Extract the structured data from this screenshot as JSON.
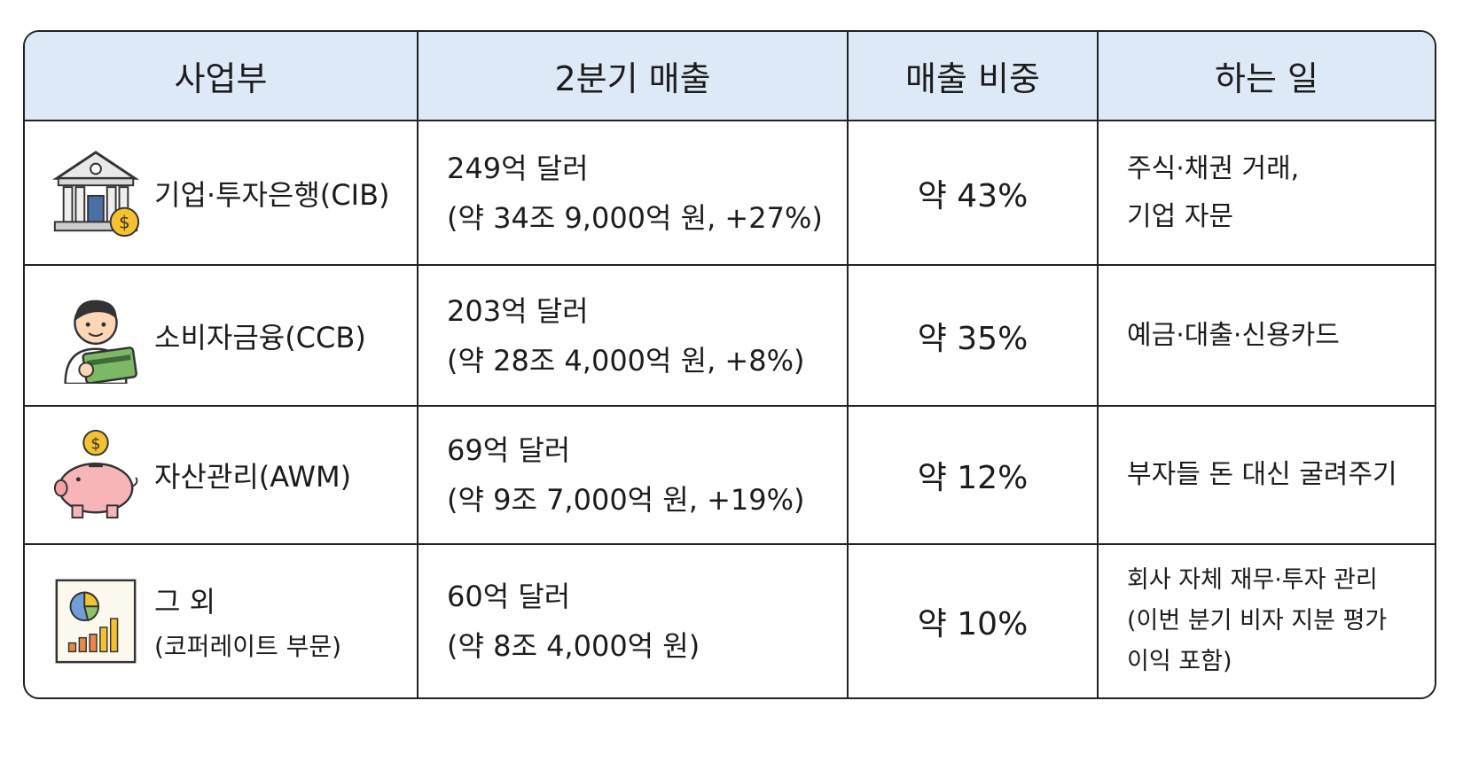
{
  "table": {
    "headers": [
      "사업부",
      "2분기 매출",
      "매출 비중",
      "하는 일"
    ],
    "rows": [
      [
        [
          "기업·투자은행(CIB)"
        ],
        [
          "249억 달러",
          "(약 34조 9,000억 원, +27%)"
        ],
        [
          "약 43%"
        ],
        [
          "주식·채권 거래,",
          "기업 자문"
        ]
      ],
      [
        [
          "소비자금융(CCB)"
        ],
        [
          "203억 달러",
          "(약 28조 4,000억 원, +8%)"
        ],
        [
          "약 35%"
        ],
        [
          "예금·대출·신용카드"
        ]
      ],
      [
        [
          "자산관리(AWM)"
        ],
        [
          "69억 달러",
          "(약 9조 7,000억 원, +19%)"
        ],
        [
          "약 12%"
        ],
        [
          "부자들 돈 대신 굴려주기"
        ]
      ],
      [
        [
          "그 외",
          "(코퍼레이트 부문)"
        ],
        [
          "60억 달러",
          "(약 8조 4,000억 원)"
        ],
        [
          "약 10%"
        ],
        [
          "회사 자체 재무·투자 관리",
          "(이번 분기 비자 지분 평가",
          "이익 포함)"
        ]
      ]
    ]
  }
}
